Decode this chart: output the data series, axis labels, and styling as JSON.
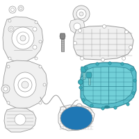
{
  "background_color": "#ffffff",
  "fig_size": [
    2.0,
    2.0
  ],
  "dpi": 100,
  "lc": "#aaaaaa",
  "lw": 0.55,
  "oil_fill": "#5abecb",
  "oil_edge": "#2a8090",
  "part_fill": "#f0f0f0",
  "part_edge": "#999999",
  "white_fill": "#ffffff",
  "bolt_fill": "#888888",
  "bolt_edge": "#555555",
  "teal_bolt": "#3aacb8"
}
